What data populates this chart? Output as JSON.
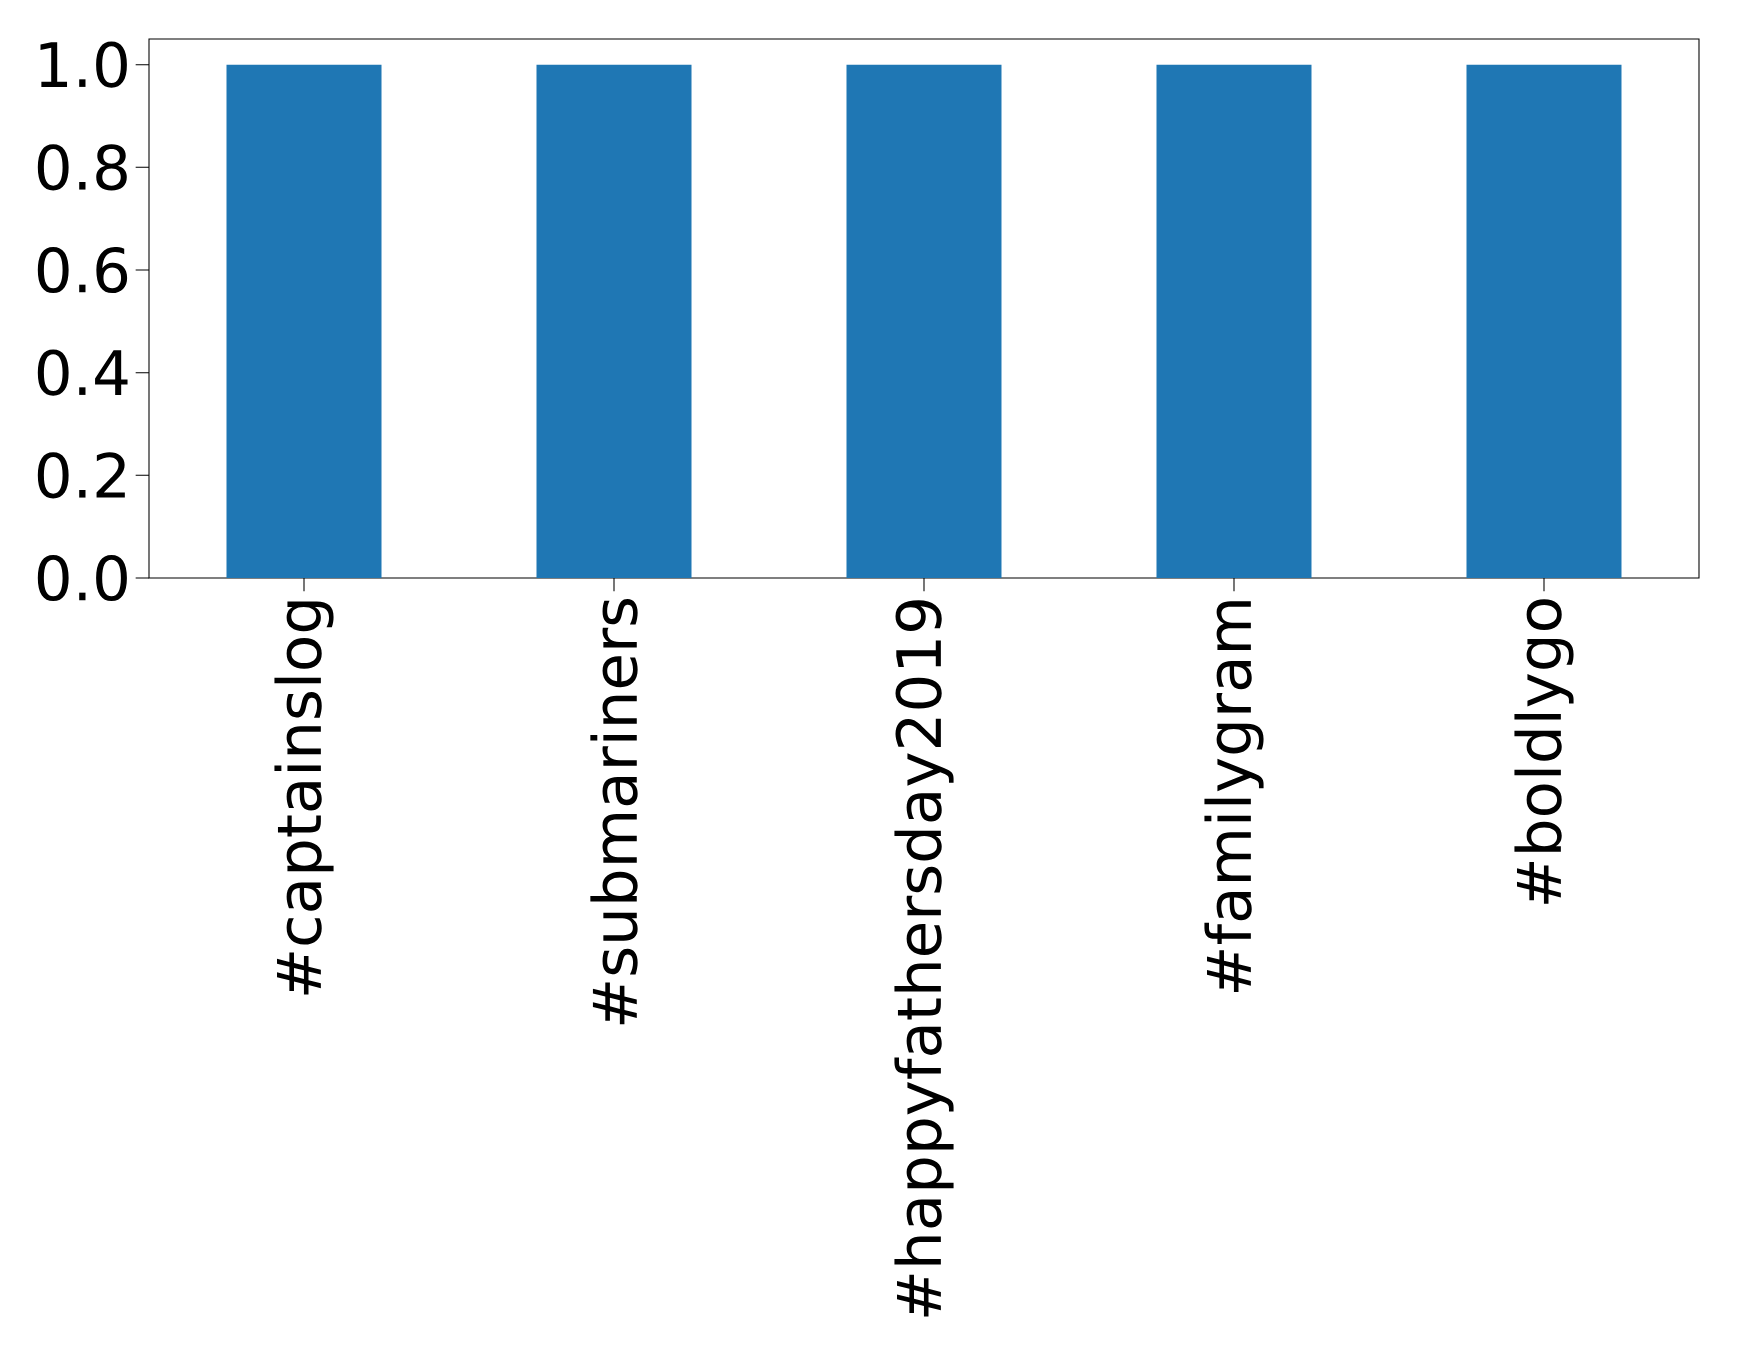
{
  "chart_data": {
    "type": "bar",
    "categories": [
      "#captainslog",
      "#submariners",
      "#happyfathersday2019",
      "#familygram",
      "#boldlygo"
    ],
    "values": [
      1,
      1,
      1,
      1,
      1
    ],
    "color": "#1f77b4",
    "ylim": [
      0,
      1.05
    ],
    "yticks": [
      {
        "value": 0,
        "label": "0.0"
      },
      {
        "value": 0.2,
        "label": "0.2"
      },
      {
        "value": 0.4,
        "label": "0.4"
      },
      {
        "value": 0.6,
        "label": "0.6"
      },
      {
        "value": 0.8,
        "label": "0.8"
      },
      {
        "value": 1,
        "label": "1.0"
      }
    ],
    "grid": false
  }
}
